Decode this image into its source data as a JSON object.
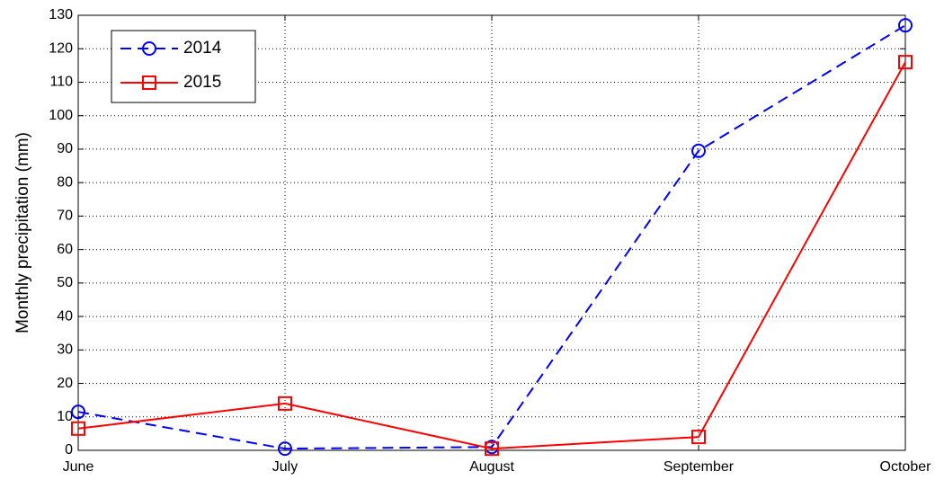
{
  "chart_data": {
    "type": "line",
    "y_label": "Monthly precipitation (mm)",
    "categories": [
      "June",
      "July",
      "August",
      "September",
      "October"
    ],
    "series": [
      {
        "name": "2014",
        "color": "#0000ff",
        "linestyle": "dashed",
        "marker": "circle",
        "values": [
          11.5,
          0.5,
          1,
          89.5,
          127
        ]
      },
      {
        "name": "2015",
        "color": "#ff0000",
        "linestyle": "solid",
        "marker": "square",
        "values": [
          6.5,
          14,
          0.5,
          4,
          116
        ]
      }
    ],
    "ylim": [
      0,
      130
    ],
    "yticks": [
      0,
      10,
      20,
      30,
      40,
      50,
      60,
      70,
      80,
      90,
      100,
      110,
      120,
      130
    ],
    "grid": true,
    "legend": "upper left"
  }
}
